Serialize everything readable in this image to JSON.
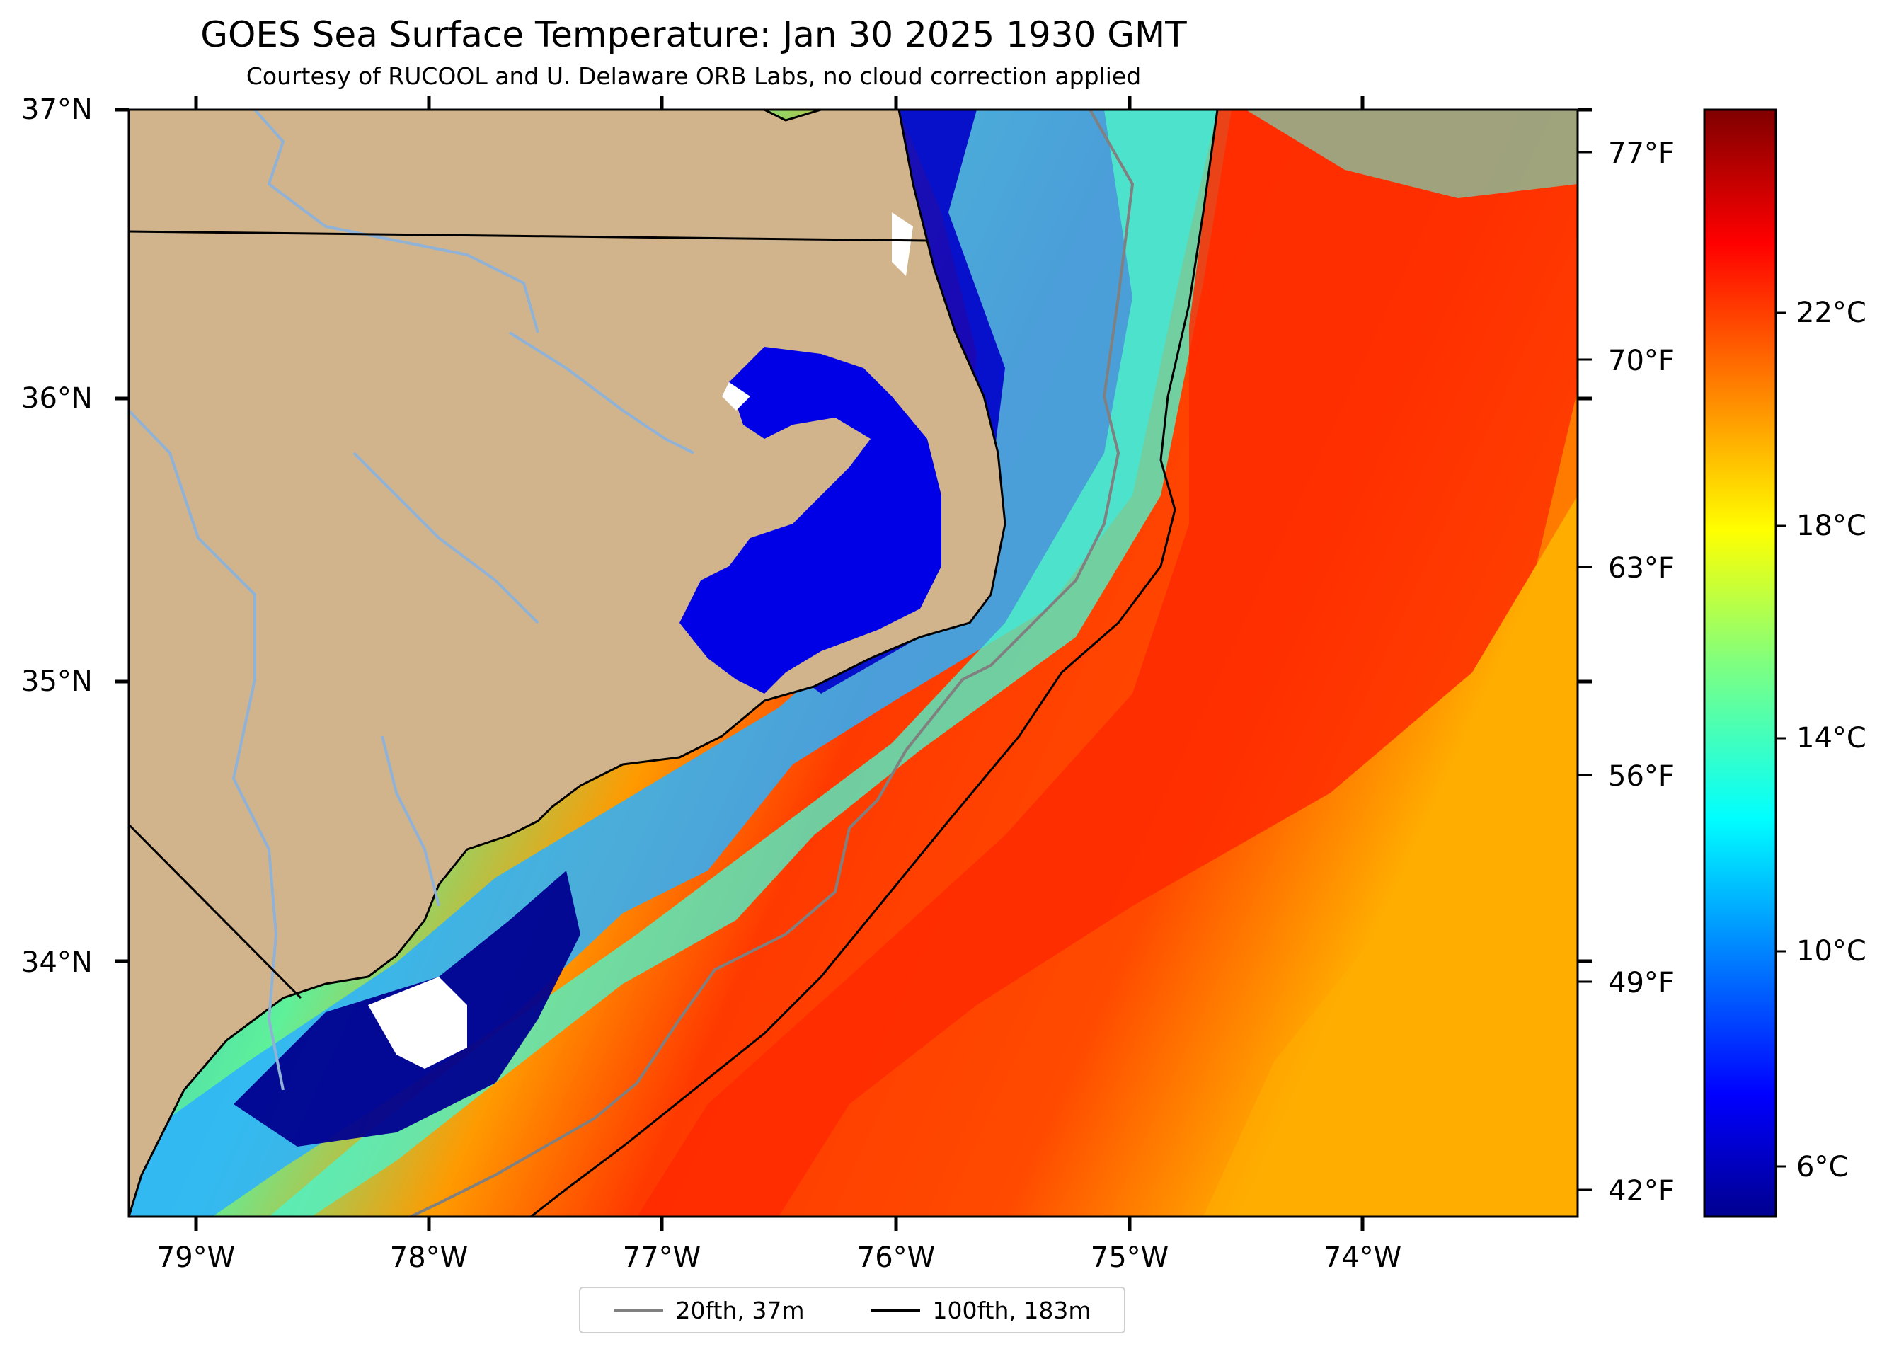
{
  "title": "GOES Sea Surface Temperature: Jan 30 2025 1930 GMT",
  "subtitle": "Courtesy of RUCOOL and U. Delaware ORB Labs, no cloud correction applied",
  "axes": {
    "lat_labels": [
      "37°N",
      "36°N",
      "35°N",
      "34°N"
    ],
    "lon_labels": [
      "79°W",
      "78°W",
      "77°W",
      "76°W",
      "75°W",
      "74°W"
    ],
    "fahrenheit_labels": [
      "77°F",
      "70°F",
      "63°F",
      "56°F",
      "49°F",
      "42°F"
    ]
  },
  "colorbar": {
    "labels": [
      "22°C",
      "18°C",
      "14°C",
      "10°C",
      "6°C"
    ],
    "colormap": "jet"
  },
  "legend": {
    "items": [
      {
        "label": "20fth, 37m",
        "color": "#808080"
      },
      {
        "label": "100fth, 183m",
        "color": "#000000"
      }
    ]
  },
  "colors": {
    "land": "#d2b48c",
    "coast": "#000000",
    "rivers": "#8fb2d6",
    "ocean_warm": "#ff2a00",
    "ocean_cold": "#00008f"
  }
}
